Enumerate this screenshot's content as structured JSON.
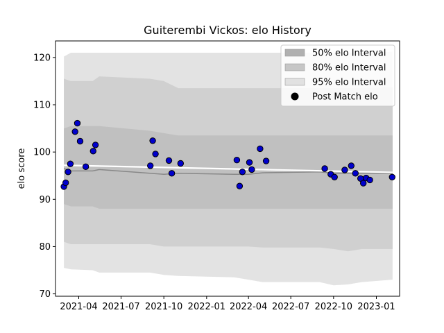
{
  "chart_data": {
    "type": "area",
    "title": "Guiterembi Vickos: elo History",
    "xlabel": "",
    "ylabel": "elo score",
    "xlim": [
      "2021-02-10",
      "2023-02-20"
    ],
    "ylim": [
      69.5,
      123.5
    ],
    "x_ticks": [
      "2021-04",
      "2021-07",
      "2021-10",
      "2022-01",
      "2022-04",
      "2022-07",
      "2022-10",
      "2023-01"
    ],
    "y_ticks": [
      70,
      80,
      90,
      100,
      110,
      120
    ],
    "grid": false,
    "legend_position": "top-right",
    "legend": [
      {
        "label": "50% elo Interval",
        "color": "#b0b0b0",
        "kind": "band"
      },
      {
        "label": "80% elo Interval",
        "color": "#c6c6c6",
        "kind": "band"
      },
      {
        "label": "95% elo Interval",
        "color": "#e1e1e1",
        "kind": "band"
      },
      {
        "label": "Post Match elo",
        "color": "#000000",
        "kind": "marker"
      }
    ],
    "colors": {
      "band50": "#c0c0c0",
      "band80": "#d0d0d0",
      "band95": "#e3e3e3",
      "median_line": "#888888",
      "trend_line": "#ffffff",
      "points": "#0000cc",
      "point_edge": "#000000"
    },
    "bands": {
      "x": [
        "2021-02-28",
        "2021-03-15",
        "2021-05-01",
        "2021-05-15",
        "2021-09-01",
        "2021-10-01",
        "2021-11-01",
        "2022-03-01",
        "2022-04-01",
        "2022-05-01",
        "2022-09-01",
        "2022-10-01",
        "2022-11-01",
        "2022-12-01",
        "2023-02-05"
      ],
      "p95_upper": [
        120.2,
        121.0,
        121.0,
        121.0,
        121.0,
        121.0,
        121.0,
        121.0,
        121.0,
        121.0,
        121.0,
        121.0,
        121.0,
        121.0,
        121.2
      ],
      "p80_upper": [
        115.5,
        115.0,
        115.0,
        116.0,
        115.5,
        115.0,
        113.5,
        113.5,
        113.5,
        113.5,
        113.5,
        113.5,
        113.5,
        113.5,
        113.7
      ],
      "p50_upper": [
        105.0,
        105.5,
        105.5,
        105.5,
        104.5,
        104.0,
        103.5,
        103.5,
        103.5,
        103.5,
        103.5,
        103.5,
        103.5,
        103.5,
        103.5
      ],
      "median": [
        96.5,
        96.0,
        96.0,
        96.3,
        95.5,
        95.3,
        95.5,
        95.3,
        95.3,
        95.6,
        95.8,
        95.5,
        95.5,
        95.5,
        95.5
      ],
      "p50_lower": [
        89.0,
        88.5,
        88.5,
        88.0,
        88.0,
        88.0,
        88.0,
        88.0,
        88.0,
        88.0,
        88.0,
        88.0,
        88.0,
        88.0,
        88.0
      ],
      "p80_lower": [
        81.0,
        80.5,
        80.5,
        80.5,
        80.5,
        80.0,
        80.0,
        80.0,
        80.0,
        79.8,
        79.8,
        79.5,
        79.0,
        79.5,
        79.5
      ],
      "p95_lower": [
        75.5,
        75.2,
        75.0,
        74.5,
        74.5,
        74.0,
        73.8,
        73.5,
        73.0,
        72.5,
        72.5,
        71.8,
        72.0,
        72.5,
        73.0
      ]
    },
    "trend": {
      "x": [
        "2021-02-28",
        "2023-02-05"
      ],
      "y": [
        97.2,
        95.7
      ]
    },
    "series": [
      {
        "name": "Post Match elo",
        "x": [
          "2021-02-28",
          "2021-03-04",
          "2021-03-09",
          "2021-03-14",
          "2021-03-24",
          "2021-03-29",
          "2021-04-04",
          "2021-04-16",
          "2021-05-02",
          "2021-05-07",
          "2021-09-02",
          "2021-09-07",
          "2021-09-13",
          "2021-10-12",
          "2021-10-18",
          "2021-11-06",
          "2022-03-07",
          "2022-03-13",
          "2022-03-19",
          "2022-04-03",
          "2022-04-08",
          "2022-04-26",
          "2022-05-09",
          "2022-09-12",
          "2022-09-25",
          "2022-10-03",
          "2022-10-25",
          "2022-11-08",
          "2022-11-17",
          "2022-11-28",
          "2022-12-04",
          "2022-12-10",
          "2022-12-18",
          "2023-02-04"
        ],
        "y": [
          92.7,
          93.5,
          95.8,
          97.5,
          104.3,
          106.1,
          102.3,
          96.9,
          100.2,
          101.5,
          97.1,
          102.4,
          99.6,
          98.2,
          95.5,
          97.6,
          98.3,
          92.8,
          95.8,
          97.8,
          96.3,
          100.7,
          98.1,
          96.5,
          95.3,
          94.7,
          96.2,
          97.1,
          95.5,
          94.4,
          93.4,
          94.5,
          94.1,
          94.7
        ]
      }
    ]
  }
}
